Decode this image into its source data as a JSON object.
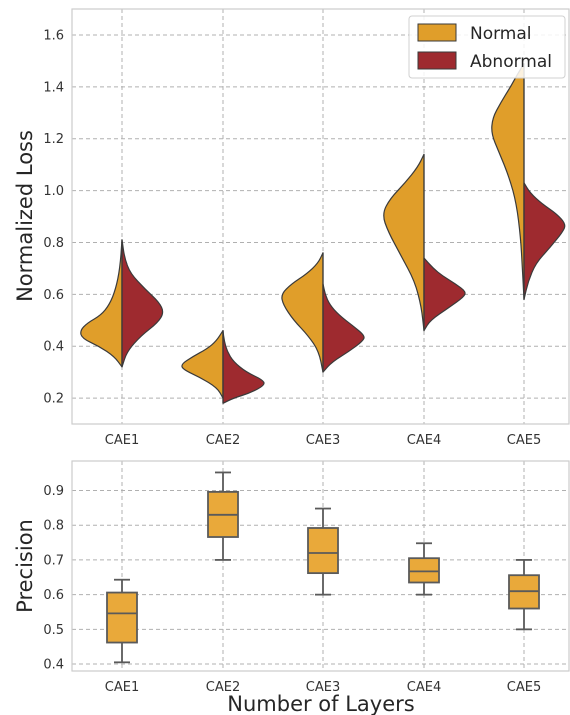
{
  "chart_data": [
    {
      "type": "violin",
      "xlabel": "",
      "ylabel": "Normalized Loss",
      "categories": [
        "CAE1",
        "CAE2",
        "CAE3",
        "CAE4",
        "CAE5"
      ],
      "ylim": [
        0.1,
        1.7
      ],
      "yticks": [
        "0.2",
        "0.4",
        "0.6",
        "0.8",
        "1.0",
        "1.2",
        "1.4",
        "1.6"
      ],
      "grid": true,
      "legend_position": "top-right",
      "series": [
        {
          "name": "Normal",
          "side": "left",
          "color": "#E09E2A",
          "violins": [
            {
              "min": 0.32,
              "max": 0.81,
              "profile": [
                [
                  0.32,
                  0
                ],
                [
                  0.36,
                  0.18
                ],
                [
                  0.4,
                  0.55
                ],
                [
                  0.43,
                  0.95
                ],
                [
                  0.46,
                  1.0
                ],
                [
                  0.49,
                  0.82
                ],
                [
                  0.52,
                  0.5
                ],
                [
                  0.56,
                  0.3
                ],
                [
                  0.62,
                  0.15
                ],
                [
                  0.7,
                  0.05
                ],
                [
                  0.81,
                  0
                ]
              ]
            },
            {
              "min": 0.2,
              "max": 0.46,
              "profile": [
                [
                  0.2,
                  0
                ],
                [
                  0.24,
                  0.14
                ],
                [
                  0.28,
                  0.55
                ],
                [
                  0.31,
                  0.95
                ],
                [
                  0.33,
                  1.0
                ],
                [
                  0.36,
                  0.72
                ],
                [
                  0.39,
                  0.38
                ],
                [
                  0.42,
                  0.16
                ],
                [
                  0.46,
                  0
                ]
              ]
            },
            {
              "min": 0.3,
              "max": 0.76,
              "profile": [
                [
                  0.3,
                  0
                ],
                [
                  0.38,
                  0.1
                ],
                [
                  0.44,
                  0.35
                ],
                [
                  0.5,
                  0.7
                ],
                [
                  0.56,
                  0.95
                ],
                [
                  0.6,
                  1.0
                ],
                [
                  0.64,
                  0.75
                ],
                [
                  0.68,
                  0.38
                ],
                [
                  0.72,
                  0.12
                ],
                [
                  0.76,
                  0
                ]
              ]
            },
            {
              "min": 0.46,
              "max": 1.14,
              "profile": [
                [
                  0.46,
                  0
                ],
                [
                  0.55,
                  0.06
                ],
                [
                  0.65,
                  0.22
                ],
                [
                  0.75,
                  0.55
                ],
                [
                  0.84,
                  0.85
                ],
                [
                  0.91,
                  1.0
                ],
                [
                  0.97,
                  0.8
                ],
                [
                  1.03,
                  0.45
                ],
                [
                  1.09,
                  0.15
                ],
                [
                  1.14,
                  0
                ]
              ]
            },
            {
              "min": 0.58,
              "max": 1.49,
              "profile": [
                [
                  0.58,
                  0
                ],
                [
                  0.7,
                  0.04
                ],
                [
                  0.82,
                  0.08
                ],
                [
                  0.95,
                  0.18
                ],
                [
                  1.05,
                  0.35
                ],
                [
                  1.15,
                  0.6
                ],
                [
                  1.22,
                  0.78
                ],
                [
                  1.28,
                  0.75
                ],
                [
                  1.34,
                  0.55
                ],
                [
                  1.4,
                  0.32
                ],
                [
                  1.45,
                  0.15
                ],
                [
                  1.49,
                  0
                ]
              ]
            }
          ]
        },
        {
          "name": "Abnormal",
          "side": "right",
          "color": "#9E2A2F",
          "violins": [
            {
              "min": 0.32,
              "max": 0.81,
              "profile": [
                [
                  0.32,
                  0
                ],
                [
                  0.38,
                  0.12
                ],
                [
                  0.44,
                  0.45
                ],
                [
                  0.49,
                  0.85
                ],
                [
                  0.53,
                  1.0
                ],
                [
                  0.57,
                  0.88
                ],
                [
                  0.62,
                  0.55
                ],
                [
                  0.68,
                  0.2
                ],
                [
                  0.74,
                  0.06
                ],
                [
                  0.81,
                  0
                ]
              ]
            },
            {
              "min": 0.18,
              "max": 0.46,
              "profile": [
                [
                  0.18,
                  0
                ],
                [
                  0.2,
                  0.25
                ],
                [
                  0.22,
                  0.65
                ],
                [
                  0.25,
                  1.0
                ],
                [
                  0.27,
                  0.95
                ],
                [
                  0.3,
                  0.55
                ],
                [
                  0.34,
                  0.25
                ],
                [
                  0.38,
                  0.1
                ],
                [
                  0.42,
                  0.03
                ],
                [
                  0.46,
                  0
                ]
              ]
            },
            {
              "min": 0.3,
              "max": 0.64,
              "profile": [
                [
                  0.3,
                  0
                ],
                [
                  0.34,
                  0.22
                ],
                [
                  0.38,
                  0.62
                ],
                [
                  0.42,
                  0.95
                ],
                [
                  0.44,
                  1.0
                ],
                [
                  0.48,
                  0.7
                ],
                [
                  0.52,
                  0.38
                ],
                [
                  0.56,
                  0.16
                ],
                [
                  0.6,
                  0.05
                ],
                [
                  0.64,
                  0
                ]
              ]
            },
            {
              "min": 0.46,
              "max": 0.74,
              "profile": [
                [
                  0.46,
                  0
                ],
                [
                  0.5,
                  0.15
                ],
                [
                  0.55,
                  0.6
                ],
                [
                  0.59,
                  0.95
                ],
                [
                  0.61,
                  1.0
                ],
                [
                  0.64,
                  0.75
                ],
                [
                  0.67,
                  0.45
                ],
                [
                  0.7,
                  0.22
                ],
                [
                  0.74,
                  0
                ]
              ]
            },
            {
              "min": 0.58,
              "max": 1.03,
              "profile": [
                [
                  0.58,
                  0
                ],
                [
                  0.65,
                  0.1
                ],
                [
                  0.72,
                  0.28
                ],
                [
                  0.78,
                  0.62
                ],
                [
                  0.84,
                  0.92
                ],
                [
                  0.87,
                  1.0
                ],
                [
                  0.91,
                  0.78
                ],
                [
                  0.95,
                  0.42
                ],
                [
                  0.99,
                  0.15
                ],
                [
                  1.03,
                  0
                ]
              ]
            }
          ]
        }
      ]
    },
    {
      "type": "box",
      "xlabel": "Number of Layers",
      "ylabel": "Precision",
      "categories": [
        "CAE1",
        "CAE2",
        "CAE3",
        "CAE4",
        "CAE5"
      ],
      "ylim": [
        0.38,
        0.985
      ],
      "yticks": [
        "0.4",
        "0.5",
        "0.6",
        "0.7",
        "0.8",
        "0.9"
      ],
      "grid": true,
      "color": "#E9A93A",
      "boxes": [
        {
          "whisker_low": 0.405,
          "q1": 0.462,
          "median": 0.546,
          "q3": 0.606,
          "whisker_high": 0.643
        },
        {
          "whisker_low": 0.7,
          "q1": 0.766,
          "median": 0.83,
          "q3": 0.896,
          "whisker_high": 0.952
        },
        {
          "whisker_low": 0.6,
          "q1": 0.662,
          "median": 0.72,
          "q3": 0.792,
          "whisker_high": 0.848
        },
        {
          "whisker_low": 0.6,
          "q1": 0.635,
          "median": 0.667,
          "q3": 0.705,
          "whisker_high": 0.748
        },
        {
          "whisker_low": 0.5,
          "q1": 0.56,
          "median": 0.61,
          "q3": 0.656,
          "whisker_high": 0.7
        }
      ]
    }
  ]
}
